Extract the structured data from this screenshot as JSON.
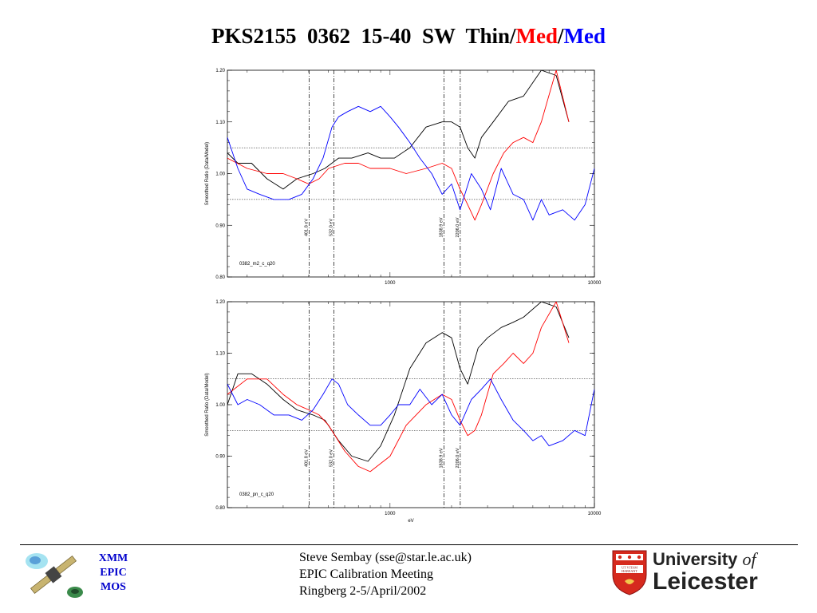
{
  "title": {
    "part1": "PKS2155  0362  15-40  SW  Thin/",
    "part2": "Med",
    "part3": "/",
    "part4": "Med"
  },
  "footer": {
    "mission": [
      "XMM",
      "EPIC",
      "MOS"
    ],
    "credits": [
      "Steve Sembay (sse@star.le.ac.uk)",
      "EPIC Calibration Meeting",
      "Ringberg 2-5/April/2002"
    ],
    "university": {
      "line1": "University ",
      "of": "of",
      "line2": "Leicester",
      "crest_text": [
        "UT VITAM",
        "HABEANT"
      ]
    }
  },
  "colors": {
    "black": "#000000",
    "red": "#ff0000",
    "blue": "#0000ff"
  },
  "chart_data": [
    {
      "type": "line",
      "panel_label": "0382_m2_c_q20",
      "ylabel": "Smoothed Ratio (Data/Model)",
      "xlabel": "",
      "xscale": "log",
      "xlim": [
        160,
        10000
      ],
      "ylim": [
        0.8,
        1.2
      ],
      "yticks": [
        "0.80",
        "0.90",
        "1.00",
        "1.10",
        "1.20"
      ],
      "xticks": [
        "1000",
        "10000"
      ],
      "hlines": [
        1.05,
        0.95
      ],
      "vlines": [
        {
          "x": 401.8,
          "label": "401.8 eV"
        },
        {
          "x": 532.0,
          "label": "532.0 eV"
        },
        {
          "x": 1838.9,
          "label": "1838.9 eV"
        },
        {
          "x": 2206.0,
          "label": "2206.0 eV"
        }
      ],
      "series": [
        {
          "color": "#000000",
          "x": [
            160,
            180,
            210,
            250,
            300,
            350,
            420,
            480,
            560,
            650,
            780,
            900,
            1050,
            1250,
            1500,
            1800,
            2000,
            2200,
            2400,
            2600,
            2800,
            3200,
            3800,
            4500,
            5500,
            6500,
            7500
          ],
          "y": [
            1.04,
            1.02,
            1.02,
            0.99,
            0.97,
            0.99,
            1.0,
            1.01,
            1.03,
            1.03,
            1.04,
            1.03,
            1.03,
            1.05,
            1.09,
            1.1,
            1.1,
            1.09,
            1.05,
            1.03,
            1.07,
            1.1,
            1.14,
            1.15,
            1.2,
            1.19,
            1.1
          ]
        },
        {
          "color": "#ff0000",
          "x": [
            160,
            200,
            250,
            300,
            350,
            400,
            450,
            500,
            600,
            700,
            800,
            1000,
            1200,
            1500,
            1800,
            2000,
            2200,
            2400,
            2600,
            2800,
            3200,
            3600,
            4000,
            4500,
            5000,
            5500,
            6500,
            7500
          ],
          "y": [
            1.03,
            1.01,
            1.0,
            1.0,
            0.99,
            0.98,
            0.99,
            1.01,
            1.02,
            1.02,
            1.01,
            1.01,
            1.0,
            1.01,
            1.02,
            1.01,
            0.97,
            0.94,
            0.91,
            0.94,
            1.0,
            1.04,
            1.06,
            1.07,
            1.06,
            1.1,
            1.2,
            1.1
          ]
        },
        {
          "color": "#0000ff",
          "x": [
            160,
            180,
            200,
            230,
            270,
            320,
            370,
            420,
            470,
            520,
            560,
            620,
            700,
            800,
            900,
            1000,
            1100,
            1250,
            1400,
            1600,
            1800,
            2000,
            2200,
            2500,
            2800,
            3100,
            3500,
            4000,
            4500,
            5000,
            5500,
            6000,
            7000,
            8000,
            9000,
            10000
          ],
          "y": [
            1.07,
            1.01,
            0.97,
            0.96,
            0.95,
            0.95,
            0.96,
            0.99,
            1.03,
            1.09,
            1.11,
            1.12,
            1.13,
            1.12,
            1.13,
            1.11,
            1.09,
            1.06,
            1.03,
            1.0,
            0.96,
            0.98,
            0.93,
            1.0,
            0.97,
            0.93,
            1.01,
            0.96,
            0.95,
            0.91,
            0.95,
            0.92,
            0.93,
            0.91,
            0.94,
            1.01
          ]
        }
      ]
    },
    {
      "type": "line",
      "panel_label": "0382_pn_c_q20",
      "ylabel": "Smoothed Ratio (Data/Model)",
      "xlabel": "eV",
      "xscale": "log",
      "xlim": [
        160,
        10000
      ],
      "ylim": [
        0.8,
        1.2
      ],
      "yticks": [
        "0.80",
        "0.90",
        "1.00",
        "1.10",
        "1.20"
      ],
      "xticks": [
        "1000",
        "10000"
      ],
      "hlines": [
        1.05,
        0.95
      ],
      "vlines": [
        {
          "x": 401.8,
          "label": "401.8 eV"
        },
        {
          "x": 532.0,
          "label": "532.0 eV"
        },
        {
          "x": 1838.9,
          "label": "1838.9 eV"
        },
        {
          "x": 2206.0,
          "label": "2206.0 eV"
        }
      ],
      "series": [
        {
          "color": "#000000",
          "x": [
            160,
            180,
            210,
            250,
            300,
            350,
            420,
            480,
            560,
            650,
            780,
            900,
            1050,
            1250,
            1500,
            1800,
            2000,
            2200,
            2400,
            2700,
            3000,
            3500,
            4000,
            4500,
            5500,
            6500,
            7500
          ],
          "y": [
            1.0,
            1.06,
            1.06,
            1.04,
            1.01,
            0.99,
            0.98,
            0.97,
            0.93,
            0.9,
            0.89,
            0.92,
            0.98,
            1.07,
            1.12,
            1.14,
            1.13,
            1.07,
            1.04,
            1.11,
            1.13,
            1.15,
            1.16,
            1.17,
            1.2,
            1.19,
            1.13
          ]
        },
        {
          "color": "#ff0000",
          "x": [
            160,
            200,
            250,
            300,
            350,
            400,
            450,
            500,
            600,
            700,
            800,
            1000,
            1200,
            1500,
            1800,
            2000,
            2200,
            2400,
            2600,
            2800,
            3200,
            3600,
            4000,
            4500,
            5000,
            5500,
            6500,
            7500
          ],
          "y": [
            1.02,
            1.05,
            1.05,
            1.02,
            1.0,
            0.99,
            0.98,
            0.96,
            0.91,
            0.88,
            0.87,
            0.9,
            0.96,
            1.0,
            1.02,
            1.01,
            0.97,
            0.94,
            0.95,
            0.98,
            1.06,
            1.08,
            1.1,
            1.08,
            1.1,
            1.15,
            1.2,
            1.12
          ]
        },
        {
          "color": "#0000ff",
          "x": [
            160,
            180,
            200,
            230,
            270,
            320,
            370,
            420,
            470,
            520,
            560,
            620,
            700,
            800,
            900,
            1000,
            1100,
            1250,
            1400,
            1600,
            1800,
            2000,
            2200,
            2500,
            2800,
            3100,
            3500,
            4000,
            4500,
            5000,
            5500,
            6000,
            7000,
            8000,
            9000,
            10000
          ],
          "y": [
            1.04,
            1.0,
            1.01,
            1.0,
            0.98,
            0.98,
            0.97,
            0.99,
            1.02,
            1.05,
            1.04,
            1.0,
            0.98,
            0.96,
            0.96,
            0.98,
            1.0,
            1.0,
            1.03,
            1.0,
            1.02,
            0.98,
            0.96,
            1.01,
            1.03,
            1.05,
            1.01,
            0.97,
            0.95,
            0.93,
            0.94,
            0.92,
            0.93,
            0.95,
            0.94,
            1.03
          ]
        }
      ]
    }
  ]
}
